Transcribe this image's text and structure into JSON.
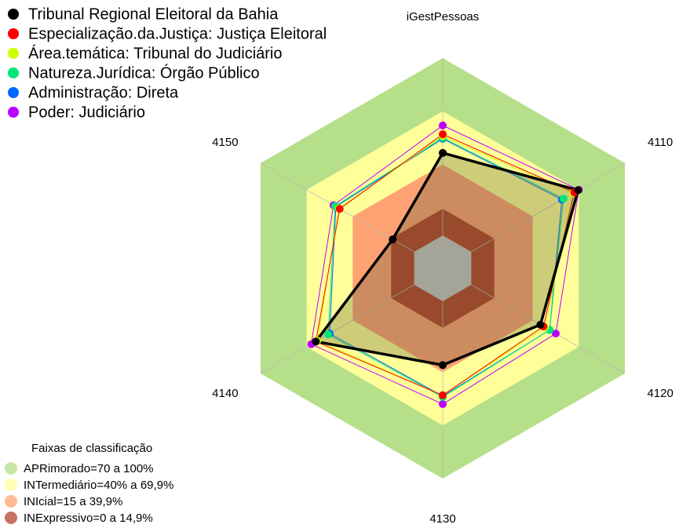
{
  "chart_data": {
    "type": "radar",
    "categories": [
      "iGestPessoas",
      "4110",
      "4120",
      "4130",
      "4140",
      "4150"
    ],
    "ylim": [
      0,
      100
    ],
    "bands_title": "Faixas de classificação",
    "bands": [
      {
        "label": "APRimorado=70 a 100%",
        "from": 70,
        "to": 100,
        "color": "#b5df89"
      },
      {
        "label": "INTermediário=40% a 69,9%",
        "from": 40,
        "to": 70,
        "color": "#ffff99"
      },
      {
        "label": "INIcial=15 a 39,9%",
        "from": 15,
        "to": 40,
        "color": "#ffa273"
      },
      {
        "label": "INExpressivo=0 a 14,9%",
        "from": 0,
        "to": 15,
        "color": "#b5442c"
      }
    ],
    "series": [
      {
        "name": "Tribunal Regional Eleitoral da Bahia",
        "color": "#000000",
        "values": [
          46.5,
          69.5,
          45,
          36,
          64,
          14
        ]
      },
      {
        "name": "Especialização.da.Justiça: Justiça Eleitoral",
        "color": "#ff0000",
        "values": [
          57,
          67,
          47,
          53,
          64,
          48.5
        ]
      },
      {
        "name": "Área.temática: Tribunal do Judiciário",
        "color": "#ccff00",
        "values": [
          56,
          66,
          48,
          53,
          63,
          49
        ]
      },
      {
        "name": "Natureza.Jurídica: Órgão Público",
        "color": "#00e676",
        "values": [
          55,
          60,
          51,
          54,
          56,
          51.5
        ]
      },
      {
        "name": "Administração: Direta",
        "color": "#0066ff",
        "values": [
          54.5,
          59,
          51,
          53.5,
          55,
          51
        ]
      },
      {
        "name": "Poder: Judiciário",
        "color": "#bb00ff",
        "values": [
          62,
          70,
          55,
          58,
          67,
          52.5
        ]
      }
    ]
  }
}
